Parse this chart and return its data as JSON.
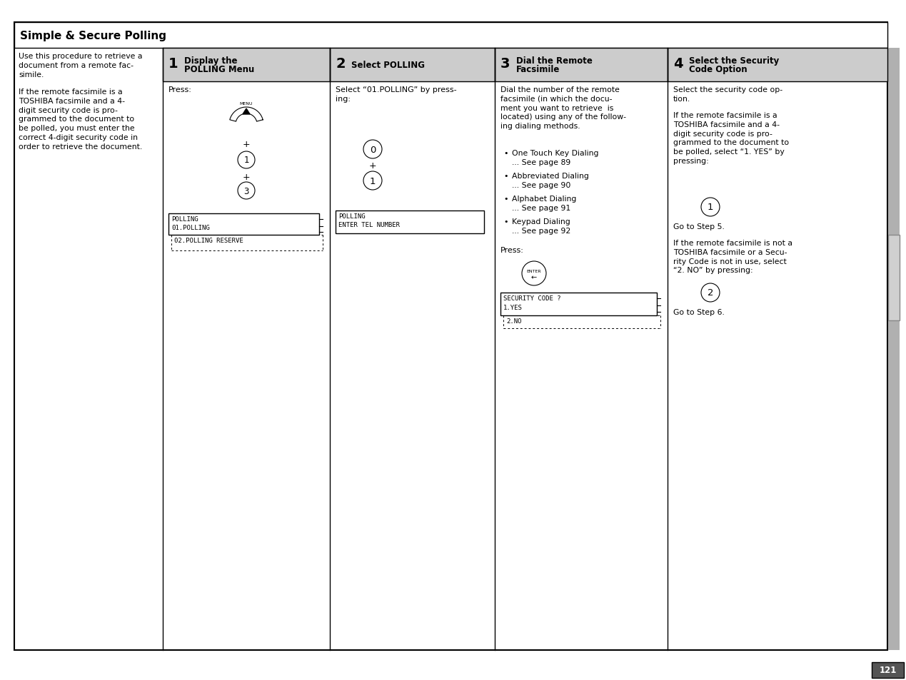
{
  "title": "Simple & Secure Polling",
  "page_number": "121",
  "background_color": "#ffffff",
  "intro_text_1": "Use this procedure to retrieve a\ndocument from a remote fac-\nsimile.",
  "intro_text_2": "If the remote facsimile is a\nTOSHIBA facsimile and a 4-\ndigit security code is pro-\ngrammed to the document to\nbe polled, you must enter the\ncorrect 4-digit security code in\norder to retrieve the document.",
  "steps": [
    {
      "number": "1",
      "title": "Display the\nPOLLING Menu"
    },
    {
      "number": "2",
      "title": "Select POLLING"
    },
    {
      "number": "3",
      "title": "Dial the Remote\nFacsimile"
    },
    {
      "number": "4",
      "title": "Select the Security\nCode Option"
    }
  ],
  "lcd1_line1": "POLLING",
  "lcd1_line2": "01.POLLING",
  "lcd1_dashed": "02.POLLING RESERVE",
  "lcd2_line1": "POLLING",
  "lcd2_line2": "ENTER TEL NUMBER",
  "lcd3_line1": "SECURITY CODE ?",
  "lcd3_line2": "1.YES",
  "lcd3_dashed": "2.NO",
  "step2_text": "Select “01.POLLING” by press-\ning:",
  "step3_text1": "Dial the number of the remote\nfacsimile (in which the docu-\nment you want to retrieve  is\nlocated) using any of the follow-\ning dialing methods.",
  "step3_bullets": [
    [
      "One Touch Key Dialing",
      "... See page 89"
    ],
    [
      "Abbreviated Dialing",
      "... See page 90"
    ],
    [
      "Alphabet Dialing",
      "... See page 91"
    ],
    [
      "Keypad Dialing",
      "... See page 92"
    ]
  ],
  "step4_text1": "Select the security code op-\ntion.",
  "step4_text2": "If the remote facsimile is a\nTOSHIBA facsimile and a 4-\ndigit security code is pro-\ngrammed to the document to\nbe polled, select “1. YES” by\npressing:",
  "step4_goto5": "Go to Step 5.",
  "step4_text3": "If the remote facsimile is not a\nTOSHIBA facsimile or a Secu-\nrity Code is not in use, select\n“2. NO” by pressing:",
  "step4_goto6": "Go to Step 6.",
  "header_gray": "#cccccc",
  "scrollbar_gray": "#999999"
}
